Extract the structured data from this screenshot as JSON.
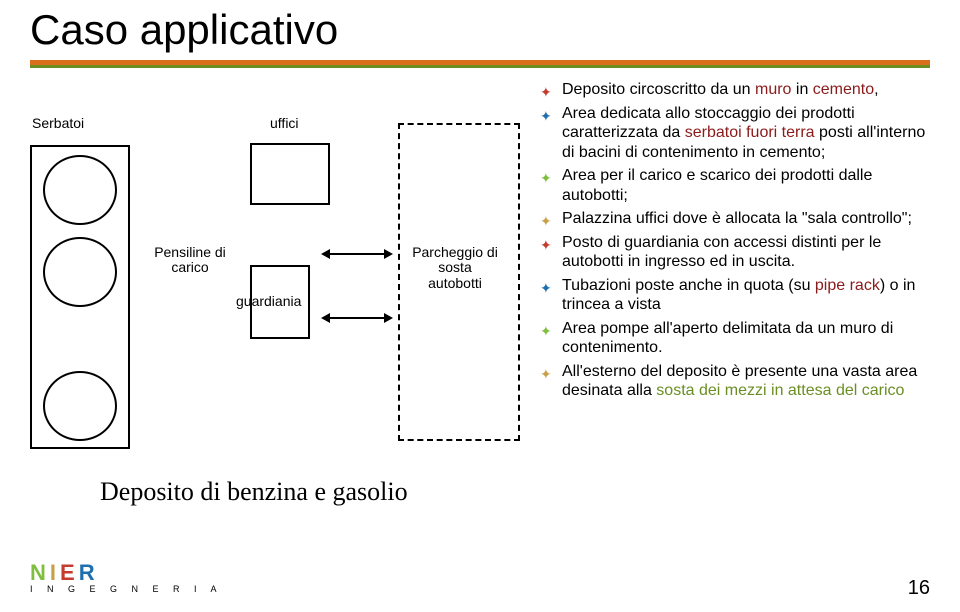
{
  "title": "Caso applicativo",
  "colors": {
    "orange": "#d96f1b",
    "green": "#6b8e23",
    "darkred": "#8b1a1a",
    "olive": "#6b8e23",
    "logoN": "#7fbf3f",
    "logoI": "#c9a04a",
    "logoE": "#c43c2e",
    "logoR": "#1f6fae"
  },
  "diagram": {
    "caption": "Deposito di benzina e gasolio",
    "serbatoi_label": "Serbatoi",
    "pensiline_label": "Pensiline di carico",
    "uffici_label": "uffici",
    "guardiania_label": "guardiania",
    "parcheggio_label": "Parcheggio di sosta autobotti"
  },
  "bullets": [
    {
      "pre": "Deposito circoscritto da un ",
      "hl1": "muro",
      "mid": " in ",
      "hl2": "cemento",
      "post": ",",
      "hl1_color": "#8b1a1a",
      "hl2_color": "#8b1a1a"
    },
    {
      "plain": "Area dedicata allo stoccaggio dei prodotti caratterizzata da ",
      "hl1": "serbatoi fuori terra",
      "post2": " posti all'interno di bacini di contenimento in cemento;",
      "hl1_color": "#8b1a1a"
    },
    {
      "plain": "Area per il carico e scarico dei prodotti dalle autobotti;"
    },
    {
      "plain": "Palazzina uffici dove è allocata la \"sala controllo\";"
    },
    {
      "plain": "Posto di guardiania con accessi distinti per le autobotti in ingresso ed in uscita."
    },
    {
      "plain": "Tubazioni poste anche in quota (su ",
      "hl1": "pipe rack",
      "post2": ") o in trincea a vista",
      "hl1_color": "#8b1a1a"
    },
    {
      "plain": "Area pompe all'aperto delimitata da un muro di contenimento."
    },
    {
      "plain": "All'esterno del deposito è presente una vasta area desinata alla ",
      "hl1": "sosta dei mezzi in attesa del carico",
      "hl1_color": "#6b8e23"
    }
  ],
  "logo": {
    "letters": [
      "N",
      "I",
      "E",
      "R"
    ],
    "sub": "I N G E G N E R I A"
  },
  "page_number": "16"
}
